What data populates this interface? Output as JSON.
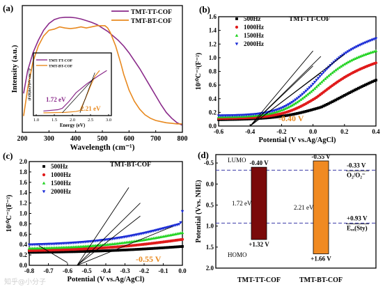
{
  "colors": {
    "purple": "#8a2a8a",
    "orange": "#e8891f",
    "black": "#000000",
    "red": "#e01b1b",
    "green": "#22d322",
    "blue": "#1a2bd6",
    "dark_red": "#7a0a0a",
    "bar_orange": "#f08a22",
    "dashed_blue": "#3a3aa8"
  },
  "watermark": "知乎@小分子",
  "chart_data": [
    {
      "panel": "(a)",
      "type": "line",
      "xlabel": "Wavelength (cm⁻¹)",
      "ylabel": "Intensity (a.u.)",
      "xlim": [
        200,
        800
      ],
      "xticks": [
        "200",
        "300",
        "400",
        "500",
        "600",
        "700",
        "800"
      ],
      "series": [
        {
          "name": "TMT-TT-COF",
          "color": "#8a2a8a",
          "x": [
            205,
            220,
            240,
            260,
            280,
            300,
            320,
            340,
            360,
            380,
            400,
            420,
            440,
            460,
            480,
            500,
            520,
            540,
            560,
            580,
            600,
            620,
            640,
            660,
            680,
            700,
            720,
            740,
            760,
            780,
            798
          ],
          "y": [
            0.32,
            0.52,
            0.68,
            0.79,
            0.88,
            0.94,
            0.975,
            0.99,
            0.995,
            0.995,
            0.99,
            0.98,
            0.965,
            0.95,
            0.93,
            0.9,
            0.87,
            0.83,
            0.79,
            0.74,
            0.68,
            0.61,
            0.54,
            0.46,
            0.38,
            0.3,
            0.22,
            0.15,
            0.1,
            0.06,
            0.04
          ]
        },
        {
          "name": "TMT-BT-COF",
          "color": "#e8891f",
          "x": [
            205,
            220,
            240,
            260,
            280,
            300,
            320,
            340,
            360,
            380,
            400,
            420,
            440,
            460,
            480,
            500,
            510,
            520,
            530,
            540,
            550,
            560,
            570,
            580,
            600,
            620,
            640,
            660,
            680,
            700,
            720,
            740,
            760,
            780,
            798
          ],
          "y": [
            0.12,
            0.36,
            0.6,
            0.74,
            0.83,
            0.88,
            0.89,
            0.91,
            0.9,
            0.895,
            0.9,
            0.91,
            0.9,
            0.91,
            0.92,
            0.92,
            0.92,
            0.9,
            0.86,
            0.8,
            0.74,
            0.66,
            0.58,
            0.49,
            0.35,
            0.25,
            0.18,
            0.13,
            0.1,
            0.08,
            0.07,
            0.06,
            0.055,
            0.05,
            0.05
          ]
        }
      ],
      "inset": {
        "xlabel": "Energy (eV)",
        "ylabel": "(F(R)hν)²(eV cm⁻¹)²",
        "xticks": [
          "1.0",
          "1.5",
          "2.0",
          "2.5",
          "3.0"
        ],
        "legend": [
          "TMT-TT-COF",
          "TMT-BT-COF"
        ],
        "annotations": [
          "1.72 eV",
          "2.21 eV"
        ]
      }
    },
    {
      "panel": "(b)",
      "type": "scatter",
      "title": "TMT-TT-COF",
      "xlabel": "Potential (V vs.Ag/AgCl)",
      "ylabel": "10¹⁰C⁻²(F⁻²)",
      "xlim": [
        -0.6,
        0.4
      ],
      "ylim": [
        0.0,
        1.6
      ],
      "xticks": [
        "-0.6",
        "-0.4",
        "-0.2",
        "0.0",
        "0.2",
        "0.4"
      ],
      "yticks": [
        "0.0",
        "0.2",
        "0.4",
        "0.6",
        "0.8",
        "1.0",
        "1.2",
        "1.4",
        "1.6"
      ],
      "annotation": "-0.40 V",
      "series": [
        {
          "name": "500Hz",
          "color": "#000000",
          "marker": "square",
          "params": [
            0.09,
            0.46,
            0.72,
            0.05,
            0.14
          ]
        },
        {
          "name": "1000Hz",
          "color": "#e01b1b",
          "marker": "circle",
          "params": [
            0.11,
            0.72,
            0.95,
            0.02,
            0.11
          ]
        },
        {
          "name": "1500Hz",
          "color": "#22d322",
          "marker": "triangle",
          "params": [
            0.13,
            0.92,
            1.12,
            0.0,
            0.105
          ]
        },
        {
          "name": "2000Hz",
          "color": "#1a2bd6",
          "marker": "tri-down",
          "params": [
            0.15,
            1.03,
            1.3,
            -0.01,
            0.1
          ]
        }
      ]
    },
    {
      "panel": "(c)",
      "type": "scatter",
      "title": "TMT-BT-COF",
      "xlabel": "Potential (V vs.Ag/AgCl)",
      "ylabel": "10¹⁰C⁻²(F⁻²)",
      "xlim": [
        -0.8,
        0.0
      ],
      "ylim": [
        0.0,
        2.0
      ],
      "xticks": [
        "-0.8",
        "-0.7",
        "-0.6",
        "-0.5",
        "-0.4",
        "-0.3",
        "-0.2",
        "-0.1",
        "0.0"
      ],
      "yticks": [
        "0.0",
        "0.2",
        "0.4",
        "0.6",
        "0.8",
        "1.0",
        "1.2",
        "1.4",
        "1.6",
        "1.8",
        "2.0"
      ],
      "annotation": "-0.55 V",
      "series": [
        {
          "name": "500Hz",
          "color": "#000000",
          "marker": "square",
          "params": [
            0.24,
            0.52,
            0.75,
            0.06,
            0.26
          ]
        },
        {
          "name": "1000Hz",
          "color": "#e01b1b",
          "marker": "circle",
          "params": [
            0.27,
            0.76,
            1.02,
            0.03,
            0.24
          ]
        },
        {
          "name": "1500Hz",
          "color": "#22d322",
          "marker": "triangle",
          "params": [
            0.31,
            0.96,
            1.27,
            0.01,
            0.22
          ]
        },
        {
          "name": "2000Hz",
          "color": "#1a2bd6",
          "marker": "tri-down",
          "params": [
            0.38,
            1.22,
            1.67,
            -0.01,
            0.21
          ]
        }
      ]
    },
    {
      "panel": "(d)",
      "type": "bar",
      "ylabel": "Potential (Vvs. NHE)",
      "ylim": [
        2.0,
        -0.7
      ],
      "yticks": [
        "-0.5",
        "0.0",
        "0.5",
        "1.0",
        "1.5",
        "2.0"
      ],
      "labels": {
        "lumo": "LUMO",
        "homo": "HOMO"
      },
      "bars": [
        {
          "name": "TMT-TT-COF",
          "top": -0.4,
          "bottom": 1.32,
          "top_label": "-0.40 V",
          "bottom_label": "+1.32 V",
          "gap_label": "1.72 eV",
          "color": "#7a0a0a"
        },
        {
          "name": "TMT-BT-COF",
          "top": -0.55,
          "bottom": 1.66,
          "top_label": "-0.55 V",
          "bottom_label": "+1.66 V",
          "gap_label": "2.21 eV",
          "color": "#f08a22"
        }
      ],
      "reference_lines": [
        {
          "value": -0.33,
          "label_value": "-0.33 V",
          "label_species": "O₂/O₂⁻"
        },
        {
          "value": 0.93,
          "label_value": "+0.93 V",
          "label_species": "Eₒₓ(Sty)"
        }
      ]
    }
  ]
}
